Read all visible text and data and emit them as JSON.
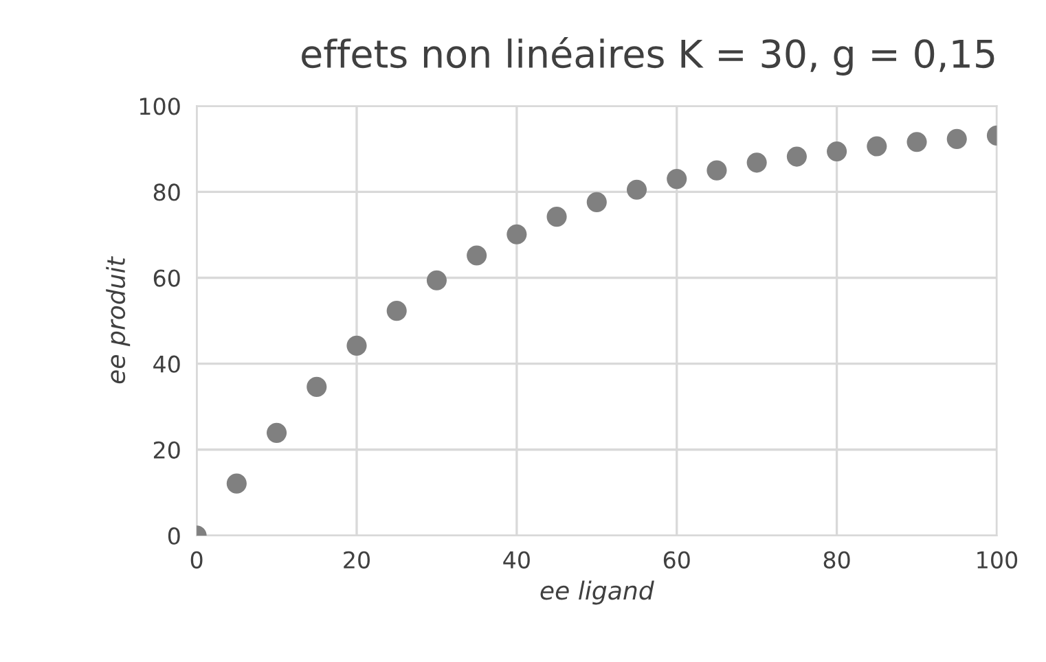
{
  "chart_data": {
    "type": "scatter",
    "title": "effets non linéaires K = 30, g = 0,15",
    "xlabel": "ee ligand",
    "ylabel": "ee produit",
    "x": [
      0,
      5,
      10,
      15,
      20,
      25,
      30,
      35,
      40,
      45,
      50,
      55,
      60,
      65,
      70,
      75,
      80,
      85,
      90,
      95,
      100
    ],
    "series": [
      {
        "color": "#808080",
        "values": [
          0,
          12.1,
          23.9,
          34.6,
          44.2,
          52.3,
          59.4,
          65.2,
          70.1,
          74.2,
          77.6,
          80.5,
          83.0,
          85.0,
          86.8,
          88.2,
          89.4,
          90.6,
          91.6,
          92.3,
          93.1
        ]
      }
    ],
    "xlim": [
      0,
      100
    ],
    "ylim": [
      0,
      100
    ],
    "xticks": [
      0,
      20,
      40,
      60,
      80,
      100
    ],
    "yticks": [
      0,
      20,
      40,
      60,
      80,
      100
    ],
    "grid": true,
    "marker": "circle"
  }
}
